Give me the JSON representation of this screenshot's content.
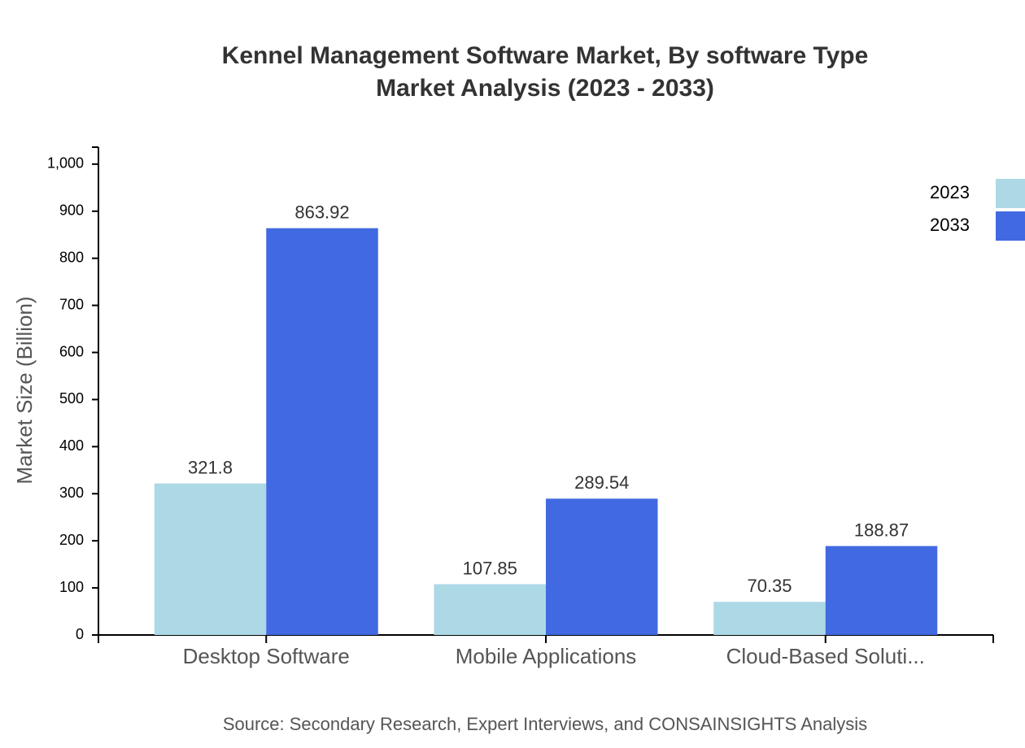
{
  "chart_data": {
    "type": "bar",
    "title": "Kennel Management Software Market, By software Type",
    "subtitle": "Market Analysis (2023 - 2033)",
    "y_label": "Market Size (Billion)",
    "source": "Source: Secondary Research, Expert Interviews, and CONSAINSIGHTS Analysis",
    "categories": [
      "Desktop Software",
      "Mobile Applications",
      "Cloud-Based Soluti..."
    ],
    "series": [
      {
        "name": "2023",
        "color": "#add8e6",
        "values": [
          321.8,
          107.85,
          70.35
        ]
      },
      {
        "name": "2033",
        "color": "#4169e1",
        "values": [
          863.92,
          289.54,
          188.87
        ]
      }
    ],
    "ylim": [
      0,
      1036
    ],
    "yticks": [
      0,
      100,
      200,
      300,
      400,
      500,
      600,
      700,
      800,
      900,
      {
        "value": 1000,
        "label": "1,000"
      }
    ],
    "legend": "top-right"
  }
}
